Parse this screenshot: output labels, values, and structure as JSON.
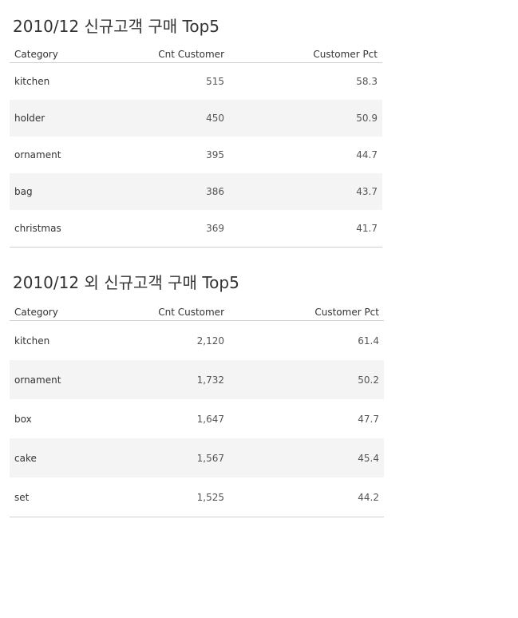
{
  "tables": [
    {
      "title": "2010/12 신규고객 구매 Top5",
      "headers": {
        "category": "Category",
        "cnt": "Cnt Customer",
        "pct": "Customer Pct"
      },
      "rows": [
        {
          "category": "kitchen",
          "cnt": "515",
          "pct": "58.3"
        },
        {
          "category": "holder",
          "cnt": "450",
          "pct": "50.9"
        },
        {
          "category": "ornament",
          "cnt": "395",
          "pct": "44.7"
        },
        {
          "category": "bag",
          "cnt": "386",
          "pct": "43.7"
        },
        {
          "category": "christmas",
          "cnt": "369",
          "pct": "41.7"
        }
      ]
    },
    {
      "title": "2010/12 외 신규고객 구매 Top5",
      "headers": {
        "category": "Category",
        "cnt": "Cnt Customer",
        "pct": "Customer Pct"
      },
      "rows": [
        {
          "category": "kitchen",
          "cnt": "2,120",
          "pct": "61.4"
        },
        {
          "category": "ornament",
          "cnt": "1,732",
          "pct": "50.2"
        },
        {
          "category": "box",
          "cnt": "1,647",
          "pct": "47.7"
        },
        {
          "category": "cake",
          "cnt": "1,567",
          "pct": "45.4"
        },
        {
          "category": "set",
          "cnt": "1,525",
          "pct": "44.2"
        }
      ]
    }
  ]
}
